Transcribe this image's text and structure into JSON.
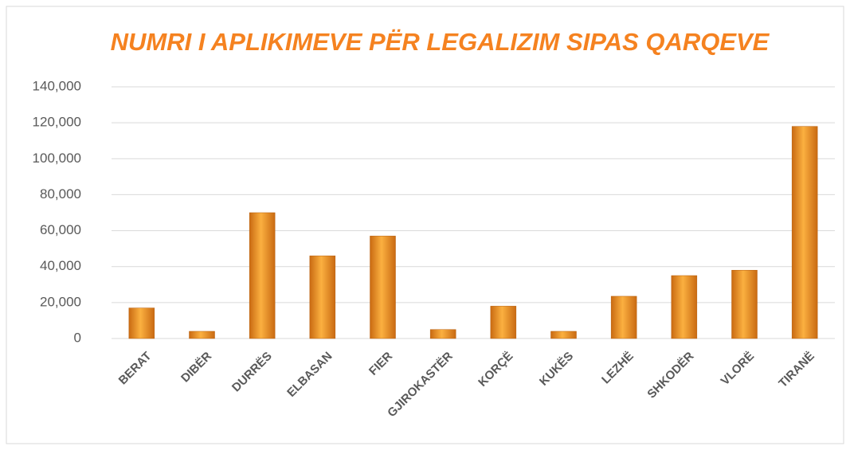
{
  "chart_data": {
    "type": "bar",
    "title": "NUMRI I APLIKIMEVE PËR LEGALIZIM  SIPAS QARQEVE",
    "categories": [
      "BERAT",
      "DIBËR",
      "DURRËS",
      "ELBASAN",
      "FIER",
      "GJIROKASTËR",
      "KORÇË",
      "KUKËS",
      "LEZHË",
      "SHKODËR",
      "VLORË",
      "TIRANË"
    ],
    "values": [
      17000,
      4000,
      70000,
      46000,
      57000,
      5000,
      18000,
      4000,
      23500,
      35000,
      38000,
      118000
    ],
    "color": "#f39a2f",
    "ylim": [
      0,
      140000
    ],
    "yticks": [
      0,
      {
        "value": 20000,
        "label": "20,000"
      },
      {
        "value": 40000,
        "label": "40,000"
      },
      {
        "value": 60000,
        "label": "60,000"
      },
      {
        "value": 80000,
        "label": "80,000"
      },
      {
        "value": 100000,
        "label": "100,000"
      },
      {
        "value": 120000,
        "label": "120,000"
      },
      {
        "value": 140000,
        "label": "140,000"
      }
    ],
    "grid": true
  }
}
